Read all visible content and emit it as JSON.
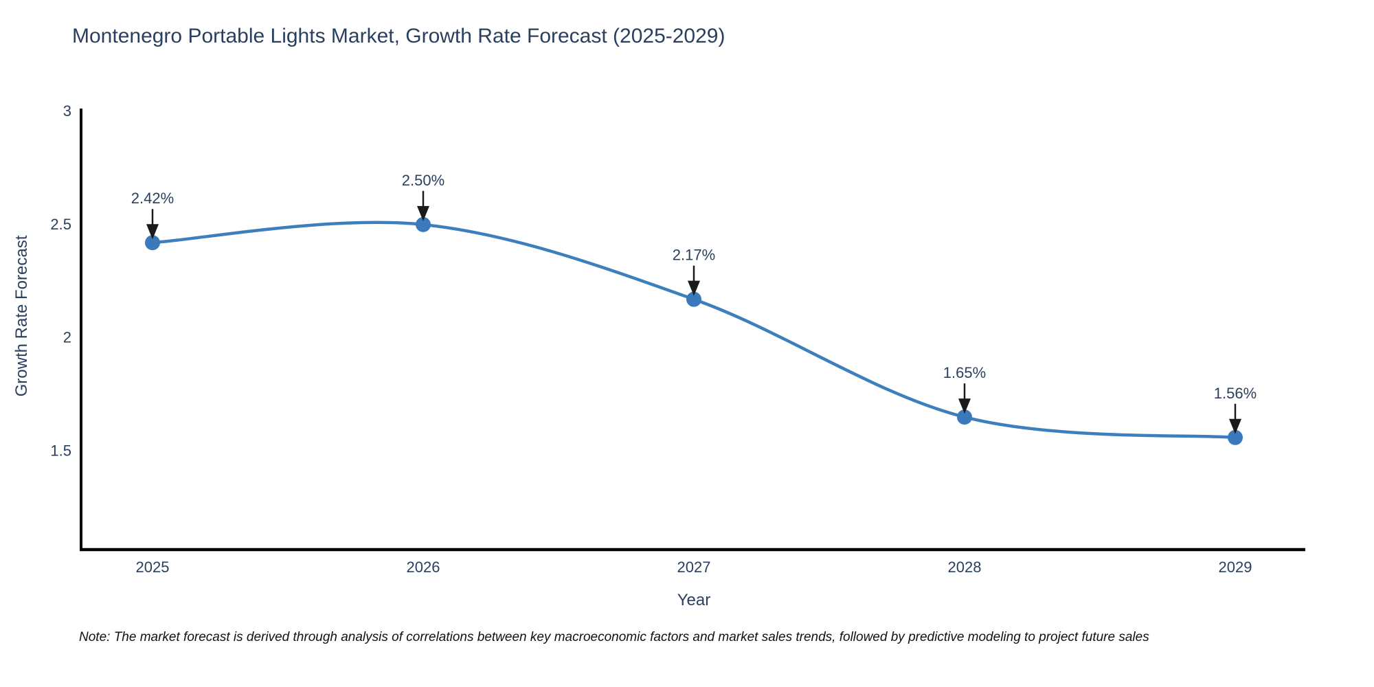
{
  "chart_data": {
    "type": "line",
    "curve": "spline",
    "title": "Montenegro Portable Lights Market, Growth Rate Forecast (2025-2029)",
    "xlabel": "Year",
    "ylabel": "Growth Rate Forecast",
    "categories": [
      "2025",
      "2026",
      "2027",
      "2028",
      "2029"
    ],
    "series": [
      {
        "name": "Growth Rate Forecast",
        "values": [
          2.42,
          2.5,
          2.17,
          1.65,
          1.56
        ],
        "point_labels": [
          "2.42%",
          "2.50%",
          "2.17%",
          "1.65%",
          "1.56%"
        ]
      }
    ],
    "ylim": [
      1.065,
      3.0
    ],
    "yticks": {
      "values": [
        3,
        2.5,
        2,
        1.5
      ],
      "labels": [
        "3",
        "2.5",
        "2",
        "1.5"
      ]
    },
    "grid": false,
    "legend_position": "none",
    "colors": {
      "line": "#3d7ebd",
      "marker": "#3a7abc",
      "axis": "#000000",
      "tick_text": "#2a3f5f",
      "annotation_text": "#2a3f5f",
      "annotation_arrow": "#1a1a1a"
    }
  },
  "footnote": "Note: The market forecast is derived through analysis of correlations between key macroeconomic factors and market sales trends, followed by predictive modeling to project future sales"
}
